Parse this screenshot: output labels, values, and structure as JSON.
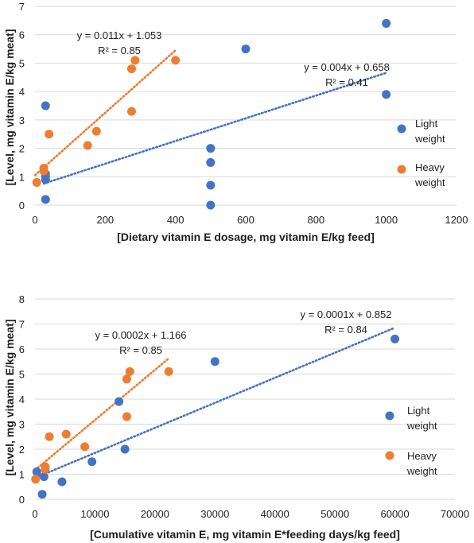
{
  "chart_data": [
    {
      "type": "scatter",
      "xlabel": "[Dietary vitamin E dosage, mg vitamin E/kg feed]",
      "ylabel": "[Level, mg vitamin E/kg meat]",
      "xlim": [
        0,
        1200
      ],
      "ylim": [
        0,
        7
      ],
      "xticks": [
        0,
        200,
        400,
        600,
        800,
        1000,
        1200
      ],
      "yticks": [
        0,
        1,
        2,
        3,
        4,
        5,
        6,
        7
      ],
      "grid": "horizontal",
      "legend_position": "right",
      "series": [
        {
          "name": "Light weight",
          "color": "#4472c4",
          "points": [
            [
              30,
              0.2
            ],
            [
              30,
              0.9
            ],
            [
              30,
              1.0
            ],
            [
              30,
              1.1
            ],
            [
              30,
              3.5
            ],
            [
              500,
              0.0
            ],
            [
              500,
              0.7
            ],
            [
              500,
              1.5
            ],
            [
              500,
              2.0
            ],
            [
              600,
              5.5
            ],
            [
              1000,
              3.9
            ],
            [
              1000,
              6.4
            ]
          ],
          "trendline": {
            "type": "linear",
            "slope": 0.004,
            "intercept": 0.658,
            "x_range": [
              25,
              1000
            ],
            "equation": "y = 0.004x + 0.658",
            "r2": "R² = 0.41"
          }
        },
        {
          "name": "Heavy weight",
          "color": "#ed7d31",
          "points": [
            [
              5,
              0.8
            ],
            [
              25,
              1.2
            ],
            [
              25,
              1.3
            ],
            [
              40,
              2.5
            ],
            [
              150,
              2.1
            ],
            [
              175,
              2.6
            ],
            [
              275,
              3.3
            ],
            [
              275,
              4.8
            ],
            [
              285,
              5.1
            ],
            [
              400,
              5.1
            ]
          ],
          "trendline": {
            "type": "linear",
            "slope": 0.011,
            "intercept": 1.053,
            "x_range": [
              0,
              400
            ],
            "equation": "y = 0.011x + 1.053",
            "r2": "R² = 0.85"
          }
        }
      ]
    },
    {
      "type": "scatter",
      "xlabel": "[Cumulative vitamin E, mg vitamin E*feeding days/kg feed]",
      "ylabel": "[Level, mg vitamin E/kg meat]",
      "xlim": [
        0,
        70000
      ],
      "ylim": [
        0,
        8
      ],
      "xticks": [
        0,
        10000,
        20000,
        30000,
        40000,
        50000,
        60000,
        70000
      ],
      "yticks": [
        0,
        1,
        2,
        3,
        4,
        5,
        6,
        7,
        8
      ],
      "grid": "horizontal",
      "legend_position": "right",
      "series": [
        {
          "name": "Light weight",
          "color": "#4472c4",
          "points": [
            [
              300,
              1.1
            ],
            [
              1200,
              0.2
            ],
            [
              1500,
              0.9
            ],
            [
              4500,
              0.7
            ],
            [
              9500,
              1.5
            ],
            [
              14000,
              3.9
            ],
            [
              15000,
              2.0
            ],
            [
              30000,
              5.5
            ],
            [
              60000,
              6.4
            ]
          ],
          "trendline": {
            "type": "linear",
            "slope": 0.0001,
            "intercept": 0.852,
            "x_range": [
              0,
              60000
            ],
            "equation": "y = 0.0001x + 0.852",
            "r2": "R² = 0.84"
          }
        },
        {
          "name": "Heavy weight",
          "color": "#ed7d31",
          "points": [
            [
              100,
              0.8
            ],
            [
              1700,
              1.2
            ],
            [
              1700,
              1.3
            ],
            [
              2400,
              2.5
            ],
            [
              5200,
              2.6
            ],
            [
              8300,
              2.1
            ],
            [
              15300,
              3.3
            ],
            [
              15300,
              4.8
            ],
            [
              15800,
              5.1
            ],
            [
              22300,
              5.1
            ]
          ],
          "trendline": {
            "type": "linear",
            "slope": 0.0002,
            "intercept": 1.166,
            "x_range": [
              0,
              22300
            ],
            "equation": "y = 0.0002x + 1.166",
            "r2": "R² = 0.85"
          }
        }
      ]
    }
  ]
}
